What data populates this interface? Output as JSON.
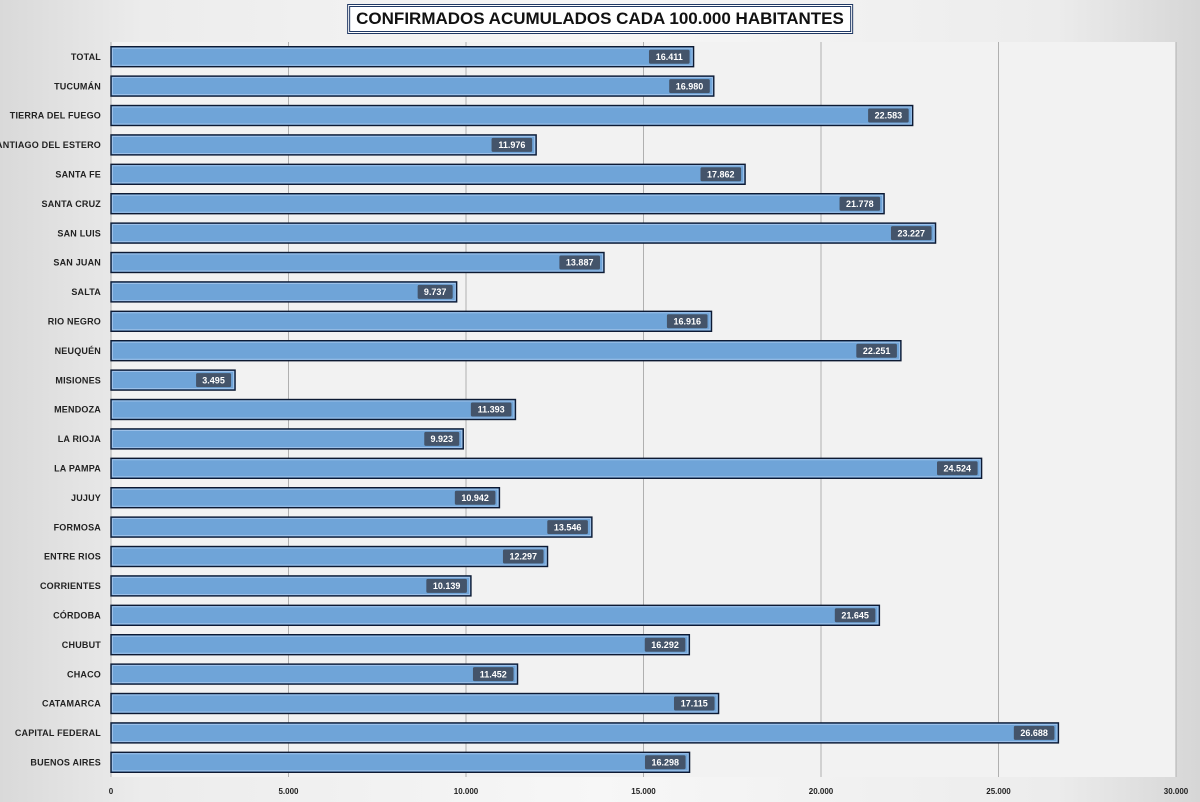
{
  "chart_data": {
    "type": "bar",
    "orientation": "horizontal",
    "title": "CONFIRMADOS ACUMULADOS CADA 100.000 HABITANTES",
    "categories": [
      "TOTAL",
      "TUCUMÁN",
      "TIERRA  DEL FUEGO",
      "SANTIAGO  DEL ESTERO",
      "SANTA FE",
      "SANTA CRUZ",
      "SAN LUIS",
      "SAN JUAN",
      "SALTA",
      "RIO  NEGRO",
      "NEUQUÉN",
      "MISIONES",
      "MENDOZA",
      "LA RIOJA",
      "LA PAMPA",
      "JUJUY",
      "FORMOSA",
      "ENTRE  RIOS",
      "CORRIENTES",
      "CÓRDOBA",
      "CHUBUT",
      "CHACO",
      "CATAMARCA",
      "CAPITAL  FEDERAL",
      "BUENOS  AIRES"
    ],
    "values": [
      16411,
      16980,
      22583,
      11976,
      17862,
      21778,
      23227,
      13887,
      9737,
      16916,
      22251,
      3495,
      11393,
      9923,
      24524,
      10942,
      13546,
      12297,
      10139,
      21645,
      16292,
      11452,
      17115,
      26688,
      16298
    ],
    "value_labels": [
      "16.411",
      "16.980",
      "22.583",
      "11.976",
      "17.862",
      "21.778",
      "23.227",
      "13.887",
      "9.737",
      "16.916",
      "22.251",
      "3.495",
      "11.393",
      "9.923",
      "24.524",
      "10.942",
      "13.546",
      "12.297",
      "10.139",
      "21.645",
      "16.292",
      "11.452",
      "17.115",
      "26.688",
      "16.298"
    ],
    "xlim": [
      0,
      30000
    ],
    "x_ticks": [
      0,
      5000,
      10000,
      15000,
      20000,
      25000,
      30000
    ],
    "x_tick_labels": [
      "0",
      "5.000",
      "10.000",
      "15.000",
      "20.000",
      "25.000",
      "30.000"
    ],
    "grid": true,
    "legend": "none",
    "colors": {
      "bar_fill": "#6fa4d8",
      "bar_stroke": "#0d1a33",
      "label_box": "#44546a",
      "gridline": "#b0b0b0",
      "plot_bg": "#f2f2f2"
    }
  }
}
